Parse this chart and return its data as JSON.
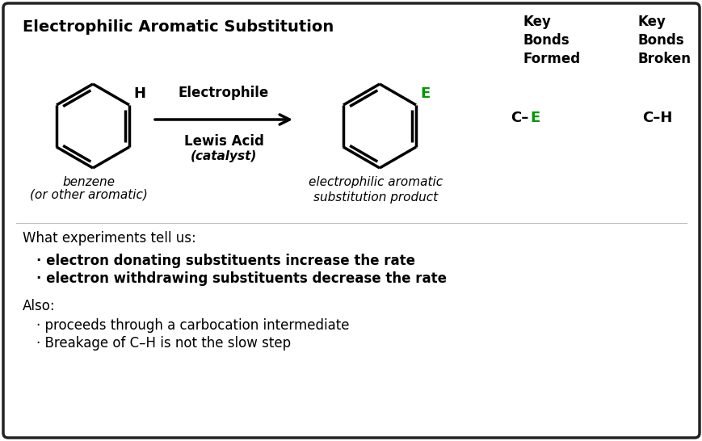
{
  "title": "Electrophilic Aromatic Substitution",
  "bg_color": "#ffffff",
  "border_color": "#222222",
  "text_color": "#000000",
  "green_color": "#009900",
  "key_bonds_formed_label": "Key\nBonds\nFormed",
  "key_bonds_broken_label": "Key\nBonds\nBroken",
  "reaction_label_top": "Electrophile",
  "reaction_label_bottom": "Lewis Acid\n(catalyst)",
  "benzene_label1": "benzene",
  "benzene_label2": "(or other aromatic)",
  "product_label": "electrophilic aromatic\nsubstitution product",
  "what_exp": "What experiments tell us:",
  "bullet1": "· electron donating substituents increase the rate",
  "bullet2": "· electron withdrawing substituents decrease the rate",
  "also": "Also:",
  "bullet3": "· proceeds through a carbocation intermediate",
  "bullet4": "· Breakage of C–H is not the slow step",
  "figsize": [
    8.7,
    5.46
  ],
  "dpi": 100
}
